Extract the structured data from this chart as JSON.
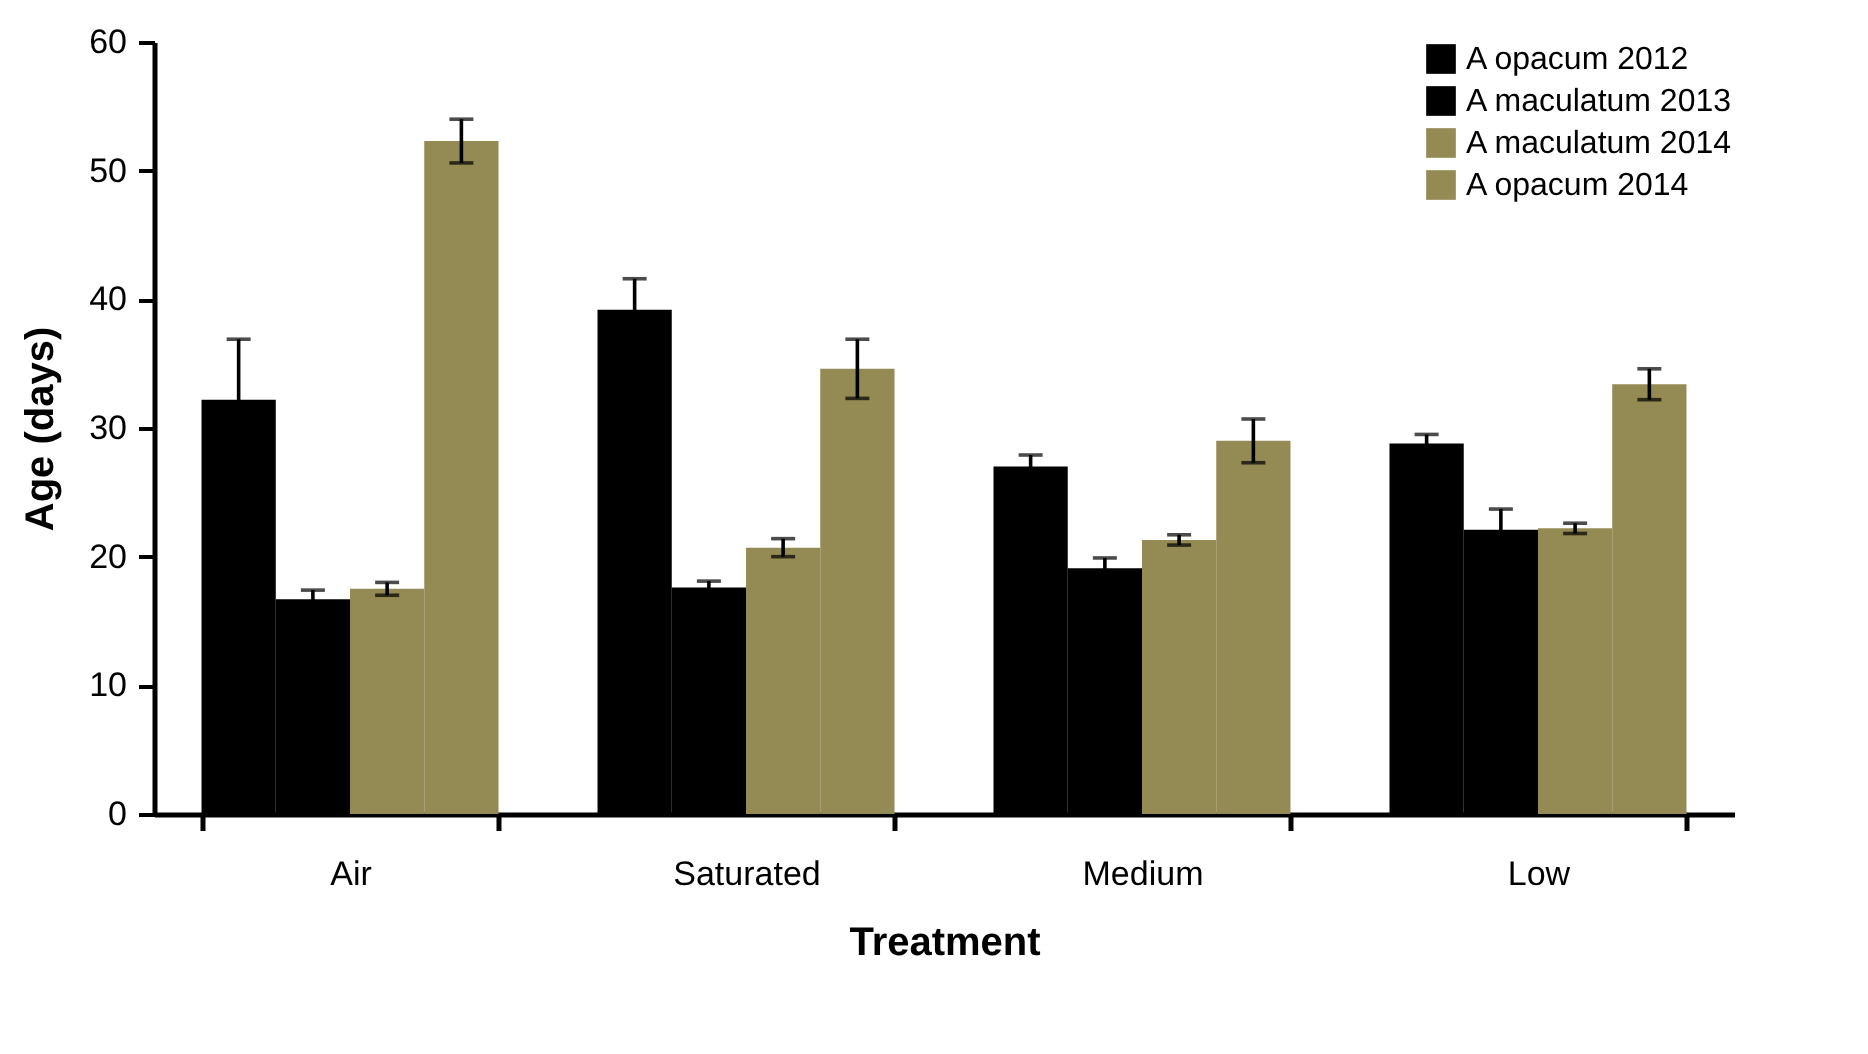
{
  "chart_data": {
    "type": "bar",
    "xlabel": "Treatment",
    "ylabel": "Age (days)",
    "categories": [
      "Air",
      "Saturated",
      "Medium",
      "Low"
    ],
    "series": [
      {
        "name": "A opacum 2012",
        "color": "#000000",
        "values": [
          32.2,
          39.2,
          27.0,
          28.8
        ],
        "errors": [
          4.7,
          2.4,
          0.9,
          0.7
        ]
      },
      {
        "name": "A maculatum 2013",
        "color": "#000000",
        "values": [
          16.7,
          17.6,
          19.1,
          22.1
        ],
        "errors": [
          0.7,
          0.5,
          0.8,
          1.6
        ]
      },
      {
        "name": "A maculatum 2014",
        "color": "#948a54",
        "values": [
          17.5,
          20.7,
          21.3,
          22.2
        ],
        "errors": [
          0.5,
          0.7,
          0.4,
          0.4
        ]
      },
      {
        "name": "A opacum 2014",
        "color": "#948a54",
        "values": [
          52.3,
          34.6,
          29.0,
          33.4
        ],
        "errors": [
          1.7,
          2.3,
          1.7,
          1.2
        ]
      }
    ],
    "ylim": [
      0,
      60
    ],
    "yticks": [
      0,
      10,
      20,
      30,
      40,
      50,
      60
    ],
    "grid": false,
    "legend": "top right"
  }
}
